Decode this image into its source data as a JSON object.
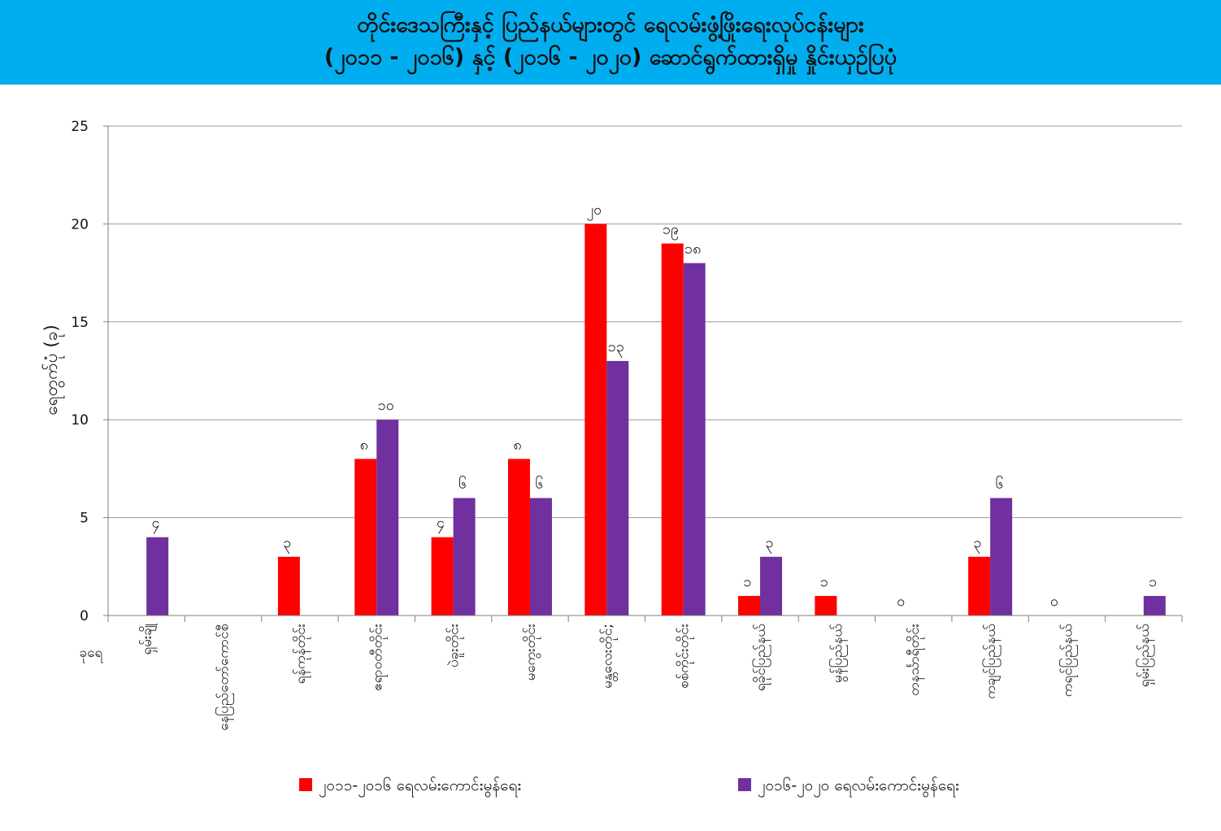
{
  "title_lines": [
    "တိုင်းဒေသကြီးနှင့် ပြည်နယ်များတွင် ရေလမ်းဖွံ့ဖြိုးရေးလုပ်ငန်းများ",
    "(၂၀၁၁ - ၂၀၁၆) နှင့် (၂၀၁၆ - ၂၀၂၀) ဆောင်ရွက်ထားရှိမှု နှိုင်းယှဉ်ပြပုံ"
  ],
  "chart_data": {
    "type": "bar",
    "ylabel": "ရေတွက်ပုံ (ခု)",
    "xlabel": "ခုရေ",
    "ylim": [
      0,
      25
    ],
    "yticks": [
      0,
      5,
      10,
      15,
      20,
      25
    ],
    "grid": true,
    "legend_position": "bottom",
    "categories": [
      "ရှမ်းချို",
      "နေပြည်တော်ကောင်စီ",
      "ရန်ကုန်တိုင်း",
      "ဧရာဝတီတိုင်း",
      "ပဲခူးတိုင်း",
      "မကွေးတိုင်း",
      "မန္တလေးတိုင်;",
      "စစ်ကိုင်းတိုင်း",
      "ရခိုင်ပြည်နယ်",
      "မွန်ပြည်နယ်",
      "တနင်္သာရီတိုင်း",
      "ကချင်ပြည်နယ်",
      "ကရင်ပြည်နယ်",
      "ရှမ်းပြည်နယ်"
    ],
    "series": [
      {
        "name": "၂၀၁၁-၂၀၁၆ ရေလမ်းကောင်းမွန်ရေး",
        "color": "#ff0000",
        "values": [
          null,
          null,
          3,
          8,
          4,
          8,
          20,
          19,
          1,
          1,
          0,
          3,
          0,
          null
        ],
        "labels": [
          "",
          "",
          "၃",
          "၈",
          "၄",
          "၈",
          "၂၀",
          "၁၉",
          "၁",
          "၁",
          "၀",
          "၃",
          "၀",
          ""
        ]
      },
      {
        "name": "၂၀၁၆-၂၀၂၀ ရေလမ်းကောင်းမွန်ရေး",
        "color": "#7030a0",
        "values": [
          4,
          null,
          null,
          10,
          6,
          6,
          13,
          18,
          3,
          null,
          null,
          6,
          null,
          1
        ],
        "labels": [
          "၄",
          "",
          "",
          "၁၀",
          "၆",
          "၆",
          "၁၃",
          "၁၈",
          "၃",
          "",
          "",
          "၆",
          "",
          "၁"
        ]
      }
    ]
  }
}
